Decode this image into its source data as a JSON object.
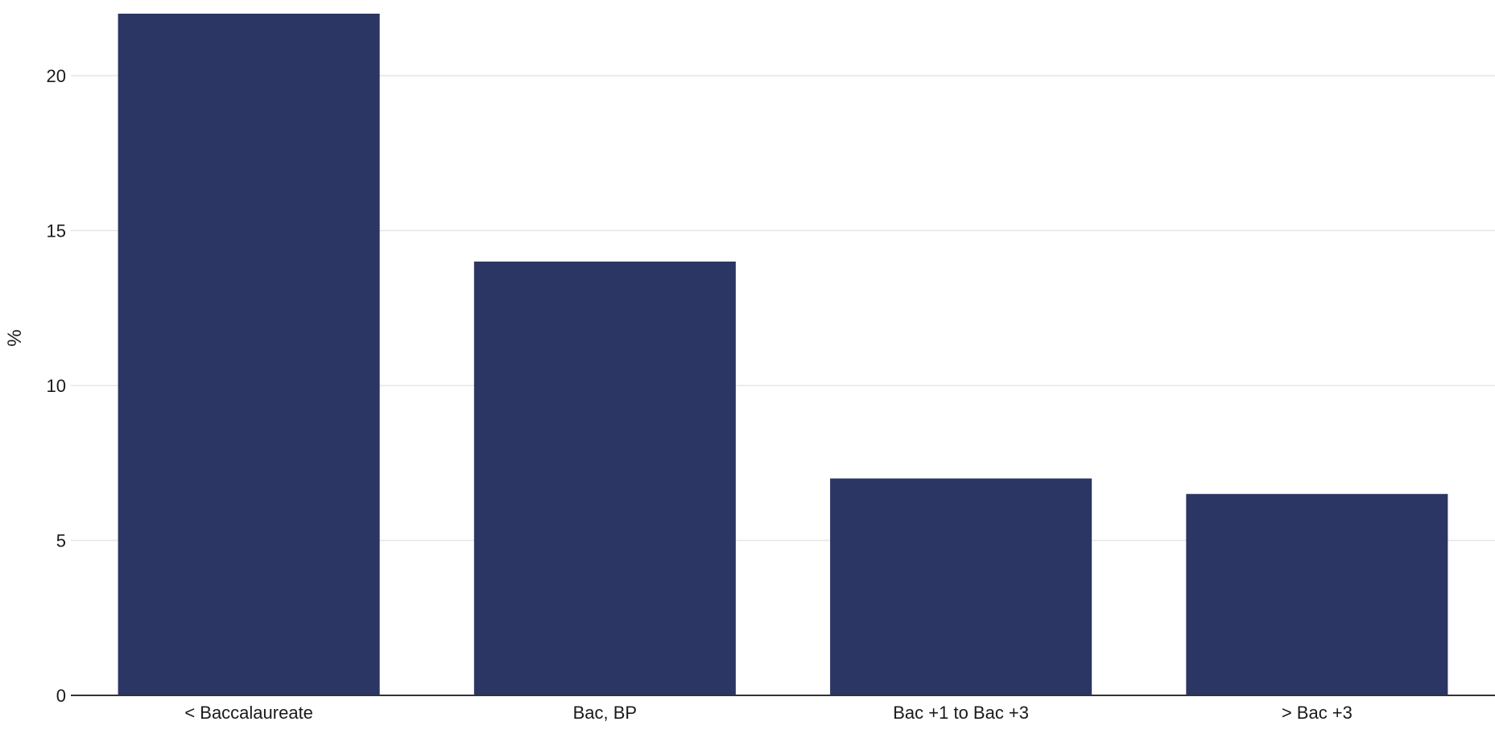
{
  "chart_data": {
    "type": "bar",
    "title": "",
    "xlabel": "",
    "ylabel": "%",
    "categories": [
      "< Baccalaureate",
      "Bac, BP",
      "Bac +1 to Bac +3",
      "> Bac +3"
    ],
    "values": [
      22.0,
      14.0,
      7.0,
      6.5
    ],
    "ylim": [
      0,
      22
    ],
    "yticks": [
      0,
      5,
      10,
      15,
      20
    ],
    "grid": true,
    "legend": "none",
    "colors": {
      "bar": "#2b3664",
      "grid": "#e6e6e6",
      "axis": "#333333"
    }
  }
}
